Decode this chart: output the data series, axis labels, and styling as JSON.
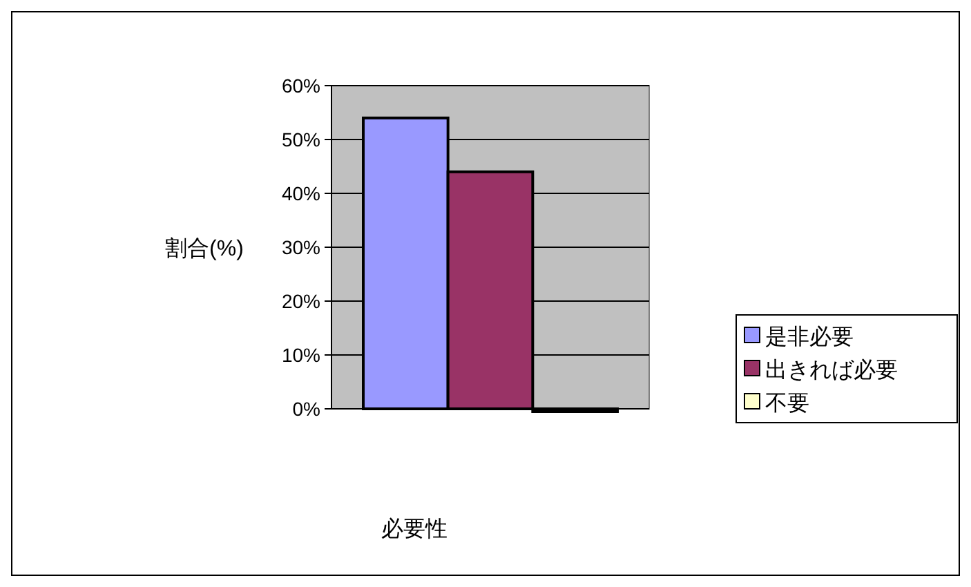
{
  "chart_data": {
    "type": "bar",
    "categories": [
      null
    ],
    "series": [
      {
        "name": "是非必要",
        "color": "#9999ff",
        "values": [
          54
        ]
      },
      {
        "name": "出きれば必要",
        "color": "#993366",
        "values": [
          44
        ]
      },
      {
        "name": "不要",
        "color": "#ffffcc",
        "values": [
          0
        ]
      }
    ],
    "ylabel": "割合(%)",
    "xlabel": "必要性",
    "ylim": [
      0,
      60
    ],
    "yticks": [
      {
        "value": 0,
        "label": "0%"
      },
      {
        "value": 10,
        "label": "10%"
      },
      {
        "value": 20,
        "label": "20%"
      },
      {
        "value": 30,
        "label": "30%"
      },
      {
        "value": 40,
        "label": "40%"
      },
      {
        "value": 50,
        "label": "50%"
      },
      {
        "value": 60,
        "label": "60%"
      }
    ],
    "grid": "y",
    "legend": "right"
  }
}
